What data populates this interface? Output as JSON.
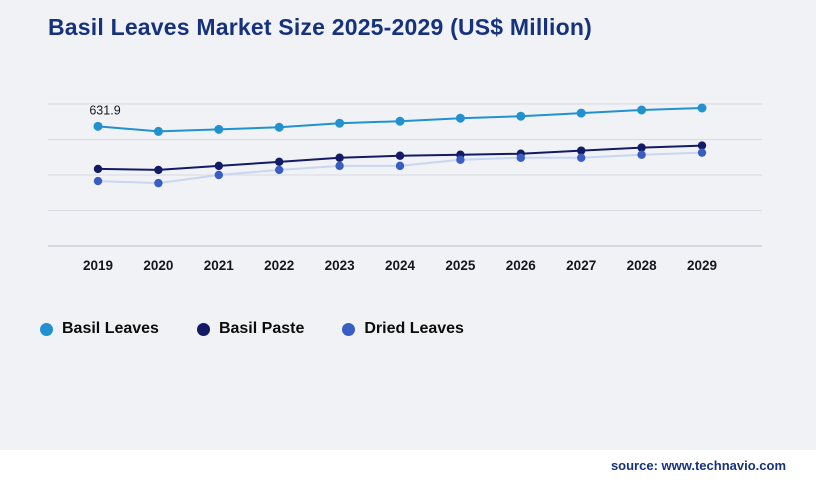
{
  "title": "Basil Leaves Market Size 2025-2029 (US$ Million)",
  "source": "source: www.technavio.com",
  "colors": {
    "background": "#f1f2f6",
    "title": "#16327d",
    "grid": "#d8dbe2",
    "axis": "#b9bec7",
    "tick_label": "#15171c",
    "annotation": "#1a1a1a",
    "legend_label": "#0d0d0d",
    "source": "#16327d"
  },
  "chart_data": {
    "type": "line",
    "title": "Basil Leaves Market Size 2025-2029 (US$ Million)",
    "xlabel": "",
    "ylabel": "US$ Million",
    "ylim": [
      0,
      750
    ],
    "grid": true,
    "legend_position": "bottom",
    "categories": [
      "2019",
      "2020",
      "2021",
      "2022",
      "2023",
      "2024",
      "2025",
      "2026",
      "2027",
      "2028",
      "2029"
    ],
    "series": [
      {
        "name": "Basil Leaves",
        "line_color": "#2191d0",
        "marker_color": "#2191d0",
        "marker_radius": 4.5,
        "values": [
          631.9,
          605.3,
          616.0,
          627.2,
          648.5,
          659.1,
          674.8,
          685.5,
          702.0,
          718.3,
          728.9
        ]
      },
      {
        "name": "Basil Paste",
        "line_color": "#141b66",
        "marker_color": "#141b66",
        "marker_radius": 4.2,
        "values": [
          407.1,
          401.8,
          423.2,
          444.6,
          466.1,
          476.8,
          482.1,
          487.5,
          503.6,
          519.6,
          530.4
        ]
      },
      {
        "name": "Dried Leaves",
        "line_color": "#c9d6f2",
        "marker_color": "#3a5dc1",
        "marker_radius": 4.2,
        "values": [
          342.9,
          332.1,
          375.0,
          401.8,
          423.2,
          423.2,
          455.4,
          466.1,
          466.1,
          482.1,
          492.9
        ]
      }
    ],
    "annotation": {
      "text": "631.9",
      "series_index": 0,
      "point_index": 0,
      "dx": 7,
      "dy": -12
    }
  },
  "legend": [
    {
      "label": "Basil Leaves",
      "color": "#2191d0"
    },
    {
      "label": "Basil Paste",
      "color": "#141b66"
    },
    {
      "label": "Dried Leaves",
      "color": "#3a5dc1"
    }
  ]
}
